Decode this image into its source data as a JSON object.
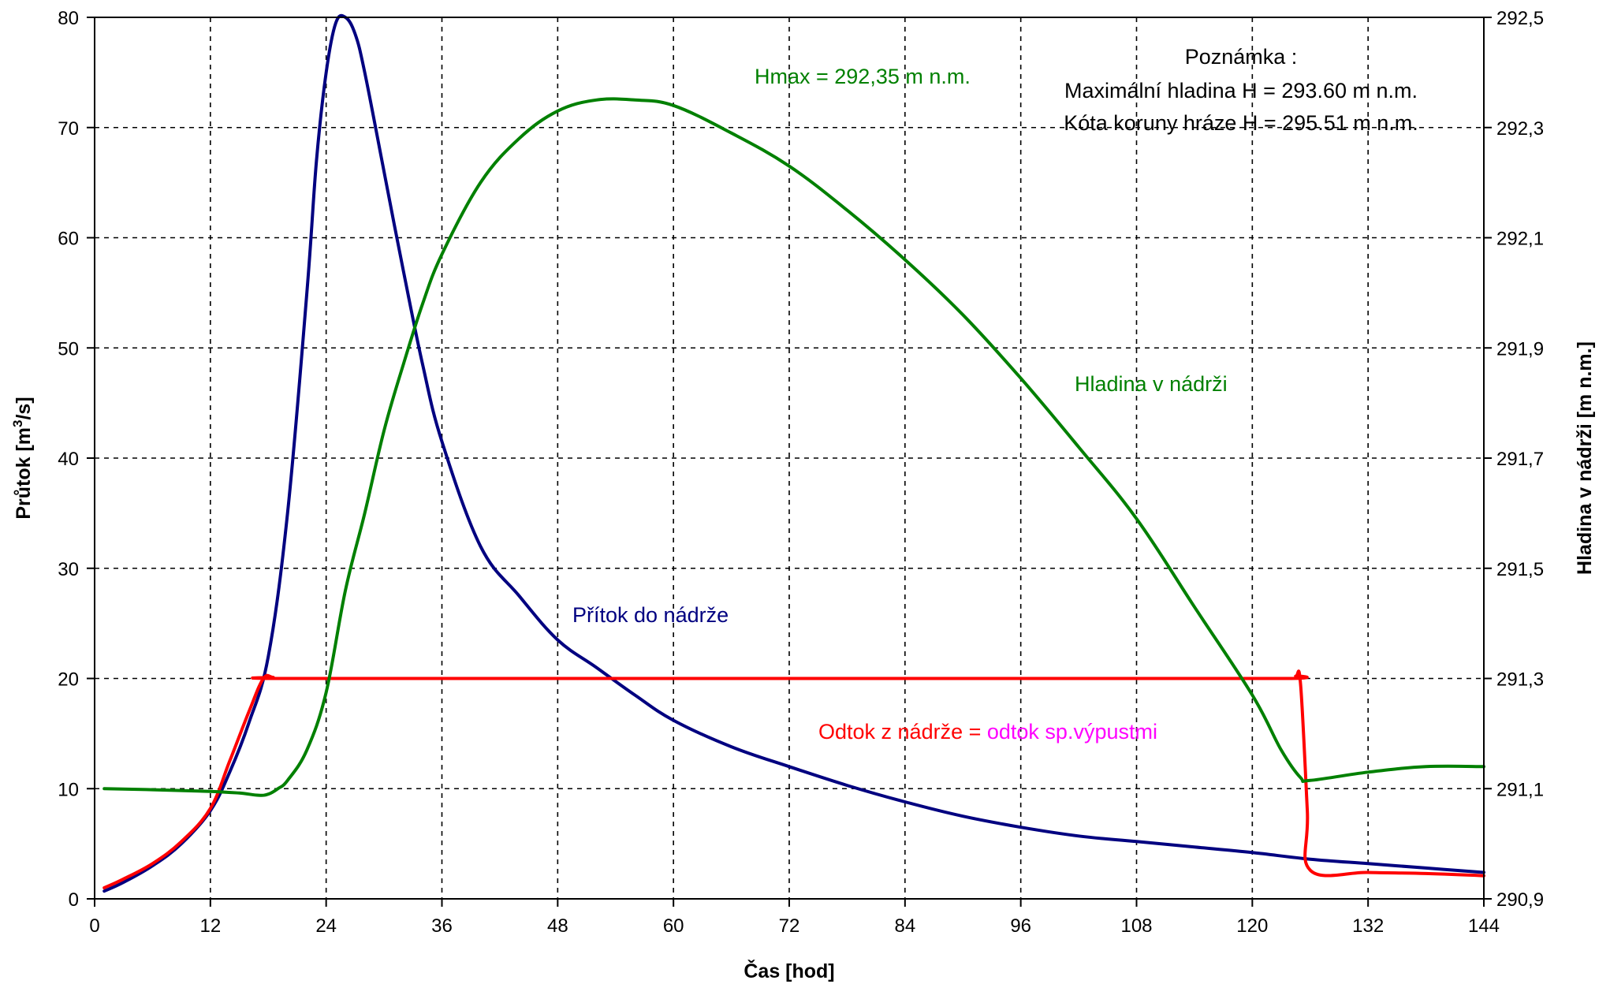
{
  "chart_data": {
    "type": "line",
    "xlabel": "Čas [hod]",
    "ylabel_prefix": "Průtok [m",
    "ylabel_sup": "3",
    "ylabel_suffix": "/s]",
    "y2label": "Hladina v nádrži [m n.m.]",
    "xlim": [
      0,
      144
    ],
    "ylim": [
      0,
      80
    ],
    "y2lim": [
      290.9,
      292.5
    ],
    "xticks": [
      0,
      12,
      24,
      36,
      48,
      60,
      72,
      84,
      96,
      108,
      120,
      132,
      144
    ],
    "yticks": [
      0,
      10,
      20,
      30,
      40,
      50,
      60,
      70,
      80
    ],
    "y2ticks": [
      "290,9",
      "291,1",
      "291,3",
      "291,5",
      "291,7",
      "291,9",
      "292,1",
      "292,3",
      "292,5"
    ],
    "grid": true,
    "series": [
      {
        "name": "Přítok do nádrže",
        "axis": "left",
        "color": "#000080",
        "x": [
          1,
          3,
          6,
          9,
          12,
          14,
          16,
          18,
          20,
          22,
          23,
          24,
          25,
          26,
          27,
          28,
          30,
          32,
          34,
          36,
          40,
          44,
          48,
          52,
          56,
          60,
          66,
          72,
          78,
          84,
          90,
          96,
          102,
          108,
          114,
          120,
          126,
          132,
          138,
          144
        ],
        "values": [
          0.7,
          1.5,
          3.0,
          5.0,
          8.0,
          11.5,
          16.0,
          22.0,
          35.0,
          55.0,
          67.0,
          75.0,
          79.5,
          80.0,
          78.5,
          75.0,
          66.0,
          57.0,
          48.5,
          41.5,
          32.0,
          27.5,
          23.5,
          21.0,
          18.5,
          16.2,
          13.8,
          12.0,
          10.3,
          8.8,
          7.5,
          6.5,
          5.7,
          5.2,
          4.7,
          4.2,
          3.6,
          3.2,
          2.8,
          2.4
        ]
      },
      {
        "name": "Odtok z nádrže = odtok sp.výpustmi",
        "axis": "left",
        "color": "#ff0000",
        "x": [
          1,
          3,
          6,
          9,
          12,
          14,
          16,
          17.5,
          18.5,
          20,
          60,
          100,
          123.5,
          124.5,
          125,
          125.7,
          126,
          132,
          138,
          144
        ],
        "values": [
          1.0,
          1.8,
          3.2,
          5.2,
          8.2,
          12.5,
          17.0,
          20.0,
          20.1,
          20.0,
          20.0,
          20.0,
          20.0,
          20.2,
          19.5,
          8.0,
          2.6,
          2.4,
          2.3,
          2.1
        ]
      },
      {
        "name": "Hladina v nádrži",
        "axis": "right",
        "color": "#008000",
        "x": [
          1,
          6,
          12,
          15,
          17,
          18,
          19,
          20,
          22,
          24,
          26,
          28,
          30,
          32,
          34,
          36,
          40,
          44,
          48,
          52,
          56,
          60,
          66,
          72,
          78,
          84,
          90,
          96,
          102,
          108,
          114,
          120,
          123,
          125,
          126,
          132,
          138,
          144
        ],
        "values": [
          291.1,
          291.098,
          291.095,
          291.092,
          291.088,
          291.09,
          291.1,
          291.115,
          291.17,
          291.275,
          291.46,
          291.6,
          291.75,
          291.87,
          291.98,
          292.07,
          292.2,
          292.28,
          292.33,
          292.35,
          292.35,
          292.34,
          292.29,
          292.23,
          292.15,
          292.06,
          291.96,
          291.845,
          291.72,
          291.59,
          291.43,
          291.27,
          291.17,
          291.12,
          291.115,
          291.13,
          291.14,
          291.14
        ]
      }
    ],
    "annotations": {
      "hmax": "Hmax = 292,35 m n.m.",
      "hladina": "Hladina v nádrži",
      "pritok": "Přítok do nádrže",
      "odtok_part1": "Odtok z nádrže = ",
      "odtok_part2": "odtok sp.výpustmi",
      "note_title": "Poznámka :",
      "note_line1": "Maximální hladina H = 293.60 m n.m.",
      "note_line2": "Kóta koruny hráze H = 295.51 m n.m."
    },
    "annotation_colors": {
      "hmax": "#008000",
      "hladina": "#008000",
      "pritok": "#000080",
      "odtok_part1": "#ff0000",
      "odtok_part2": "#ff00ff",
      "note": "#000000"
    }
  }
}
